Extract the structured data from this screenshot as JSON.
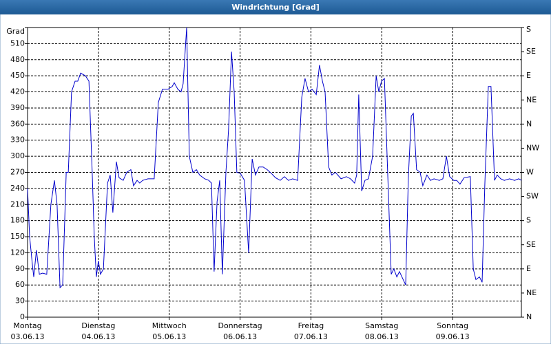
{
  "chart_data": {
    "type": "line",
    "title": "Windrichtung [Grad]",
    "color": "#0000cc",
    "grid": true,
    "xlim": [
      0,
      168
    ],
    "ylim": [
      0,
      540
    ],
    "y2lim": [
      0,
      540
    ],
    "xticks": [
      {
        "value": 0,
        "label": "Montag",
        "date": "03.06.13"
      },
      {
        "value": 24,
        "label": "Dienstag",
        "date": "04.06.13"
      },
      {
        "value": 48,
        "label": "Mittwoch",
        "date": "05.06.13"
      },
      {
        "value": 72,
        "label": "Donnerstag",
        "date": "06.06.13"
      },
      {
        "value": 96,
        "label": "Freitag",
        "date": "07.06.13"
      },
      {
        "value": 120,
        "label": "Samstag",
        "date": "08.06.13"
      },
      {
        "value": 144,
        "label": "Sonntag",
        "date": "09.06.13"
      }
    ],
    "yticks": [
      0,
      30,
      60,
      90,
      120,
      150,
      180,
      210,
      240,
      270,
      300,
      330,
      360,
      390,
      420,
      450,
      480,
      510,
      {
        "value": 540,
        "label": "Grad"
      }
    ],
    "y2ticks": [
      {
        "value": 0,
        "label": "N"
      },
      {
        "value": 45,
        "label": "NE"
      },
      {
        "value": 90,
        "label": "E"
      },
      {
        "value": 135,
        "label": "SE"
      },
      {
        "value": 180,
        "label": "S"
      },
      {
        "value": 225,
        "label": "SW"
      },
      {
        "value": 270,
        "label": "W"
      },
      {
        "value": 315,
        "label": "NW"
      },
      {
        "value": 360,
        "label": "N"
      },
      {
        "value": 405,
        "label": "NE"
      },
      {
        "value": 450,
        "label": "E"
      },
      {
        "value": 495,
        "label": "SE"
      },
      {
        "value": 540,
        "label": "S"
      }
    ],
    "x": [
      0,
      0.7,
      1.6,
      2.1,
      3.0,
      4.0,
      5.1,
      6.5,
      7.9,
      9.1,
      10.0,
      11.0,
      11.9,
      13.1,
      13.8,
      14.9,
      16.1,
      17.0,
      18.0,
      19.6,
      20.8,
      21.9,
      22.6,
      23.3,
      24.0,
      24.7,
      25.7,
      27.1,
      28.0,
      28.9,
      30.1,
      31.0,
      32.4,
      33.6,
      35.0,
      35.9,
      37.1,
      38.0,
      39.0,
      40.8,
      42.9,
      44.3,
      45.7,
      47.6,
      49.0,
      49.7,
      50.9,
      52.0,
      52.7,
      53.9,
      54.8,
      56.0,
      57.2,
      58.3,
      60.0,
      61.4,
      62.3,
      63.2,
      64.2,
      65.1,
      66.0,
      67.2,
      68.1,
      69.1,
      70.0,
      70.9,
      72.1,
      73.5,
      74.9,
      76.1,
      77.2,
      78.4,
      79.8,
      81.2,
      82.6,
      84.0,
      85.6,
      87.0,
      88.4,
      89.8,
      91.5,
      92.9,
      94.0,
      95.2,
      96.4,
      97.8,
      98.9,
      99.9,
      100.8,
      102.0,
      103.1,
      104.3,
      106.2,
      108.0,
      109.4,
      110.8,
      111.5,
      112.2,
      113.2,
      114.3,
      115.5,
      116.9,
      118.1,
      119.0,
      119.9,
      120.9,
      122.0,
      123.2,
      124.1,
      125.1,
      126.0,
      128.1,
      129.0,
      130.0,
      130.7,
      131.8,
      133.0,
      133.9,
      135.3,
      136.5,
      137.7,
      139.5,
      140.7,
      141.9,
      143.0,
      144.4,
      145.4,
      146.5,
      147.9,
      150.0,
      151.0,
      151.9,
      153.1,
      154.0,
      154.9,
      156.1,
      157.0,
      158.2,
      159.1,
      160.3,
      161.5,
      163.3,
      165.0,
      166.4,
      167.3
    ],
    "values": [
      240,
      150,
      100,
      75,
      125,
      80,
      82,
      80,
      210,
      255,
      210,
      55,
      60,
      270,
      270,
      420,
      440,
      440,
      455,
      450,
      440,
      270,
      150,
      75,
      105,
      80,
      90,
      250,
      265,
      195,
      290,
      260,
      255,
      270,
      275,
      245,
      255,
      250,
      255,
      258,
      258,
      400,
      425,
      425,
      430,
      437,
      425,
      420,
      435,
      540,
      300,
      270,
      275,
      265,
      258,
      255,
      250,
      85,
      215,
      255,
      80,
      270,
      350,
      495,
      420,
      270,
      268,
      255,
      120,
      295,
      265,
      280,
      280,
      275,
      268,
      260,
      255,
      262,
      255,
      258,
      255,
      410,
      445,
      420,
      425,
      415,
      470,
      440,
      420,
      280,
      265,
      270,
      258,
      262,
      258,
      250,
      265,
      415,
      235,
      255,
      258,
      300,
      450,
      420,
      440,
      445,
      270,
      80,
      90,
      75,
      85,
      60,
      260,
      375,
      380,
      275,
      270,
      245,
      265,
      255,
      258,
      255,
      258,
      300,
      262,
      255,
      255,
      248,
      260,
      262,
      90,
      70,
      75,
      65,
      245,
      430,
      430,
      255,
      265,
      258,
      255,
      258,
      255,
      258,
      255
    ]
  }
}
